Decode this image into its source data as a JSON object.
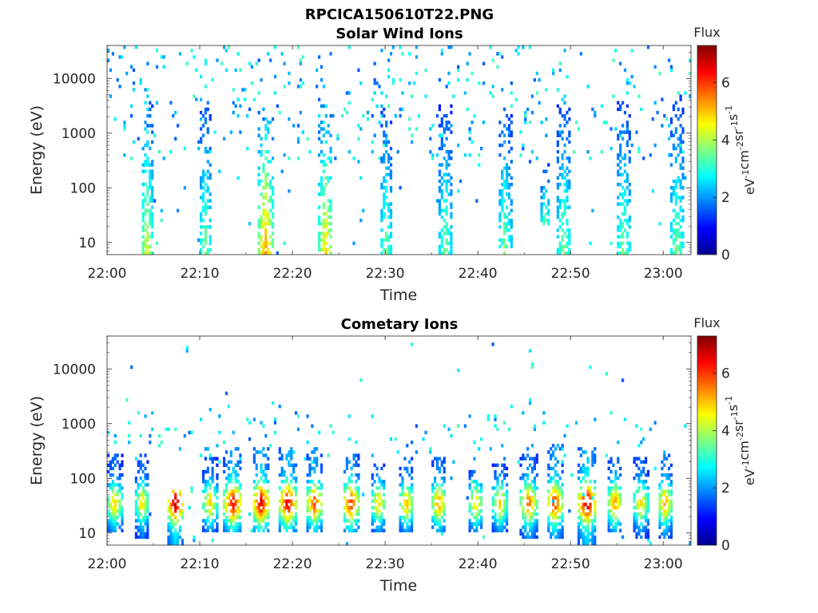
{
  "figure": {
    "suptitle": "RPCICA150610T22.PNG"
  },
  "colorbar": {
    "title": "Flux",
    "label_parts": [
      "eV",
      "-1",
      "cm",
      "-2",
      "sr",
      "-1",
      "s",
      "-1"
    ],
    "ticks": [
      "0",
      "2",
      "4",
      "6"
    ],
    "range": [
      0,
      7.3
    ],
    "colormap": "jet"
  },
  "chart_data": [
    {
      "type": "heatmap",
      "title": "Solar Wind Ions",
      "xlabel": "Time",
      "ylabel": "Energy (eV)",
      "xticks": [
        "22:00",
        "22:10",
        "22:20",
        "22:30",
        "22:40",
        "22:50",
        "23:00"
      ],
      "yticks": [
        "10",
        "100",
        "1000",
        "10000"
      ],
      "xlim_minutes_after_22_00": [
        0,
        63
      ],
      "ylim_eV": [
        6,
        40000
      ],
      "yscale": "log",
      "bursts": [
        {
          "t": 4.3,
          "width": 1.3,
          "emin": 6,
          "emax": 4000,
          "peak_flux": 4.5
        },
        {
          "t": 10.6,
          "width": 1.4,
          "emin": 6,
          "emax": 4000,
          "peak_flux": 3.8
        },
        {
          "t": 17.1,
          "width": 1.6,
          "emin": 6,
          "emax": 3000,
          "peak_flux": 5.5
        },
        {
          "t": 23.6,
          "width": 1.5,
          "emin": 6,
          "emax": 3500,
          "peak_flux": 5.0
        },
        {
          "t": 30.1,
          "width": 1.3,
          "emin": 6,
          "emax": 3000,
          "peak_flux": 3.8
        },
        {
          "t": 36.5,
          "width": 1.4,
          "emin": 6,
          "emax": 3500,
          "peak_flux": 3.8
        },
        {
          "t": 42.9,
          "width": 1.5,
          "emin": 6,
          "emax": 3500,
          "peak_flux": 3.8
        },
        {
          "t": 47.3,
          "width": 1.0,
          "emin": 20,
          "emax": 300,
          "peak_flux": 3.8
        },
        {
          "t": 49.3,
          "width": 1.6,
          "emin": 6,
          "emax": 4000,
          "peak_flux": 3.8
        },
        {
          "t": 55.7,
          "width": 1.6,
          "emin": 6,
          "emax": 4000,
          "peak_flux": 3.8
        },
        {
          "t": 61.5,
          "width": 1.6,
          "emin": 6,
          "emax": 5000,
          "peak_flux": 3.8
        }
      ]
    },
    {
      "type": "heatmap",
      "title": "Cometary Ions",
      "xlabel": "Time",
      "ylabel": "Energy (eV)",
      "xticks": [
        "22:00",
        "22:10",
        "22:20",
        "22:30",
        "22:40",
        "22:50",
        "23:00"
      ],
      "yticks": [
        "10",
        "100",
        "1000",
        "10000"
      ],
      "xlim_minutes_after_22_00": [
        0,
        63
      ],
      "ylim_eV": [
        6,
        40000
      ],
      "yscale": "log",
      "bursts": [
        {
          "t": 0.8,
          "width": 1.8,
          "emin": 10,
          "emax": 300,
          "peak_flux": 5.0
        },
        {
          "t": 3.8,
          "width": 1.4,
          "emin": 8,
          "emax": 300,
          "peak_flux": 5.0
        },
        {
          "t": 7.4,
          "width": 1.8,
          "emin": 6,
          "emax": 60,
          "peak_flux": 7.0
        },
        {
          "t": 11.1,
          "width": 1.6,
          "emin": 10,
          "emax": 250,
          "peak_flux": 5.0
        },
        {
          "t": 13.6,
          "width": 2.0,
          "emin": 10,
          "emax": 350,
          "peak_flux": 6.5
        },
        {
          "t": 16.6,
          "width": 1.8,
          "emin": 10,
          "emax": 350,
          "peak_flux": 6.8
        },
        {
          "t": 19.5,
          "width": 1.8,
          "emin": 10,
          "emax": 350,
          "peak_flux": 6.8
        },
        {
          "t": 22.4,
          "width": 1.8,
          "emin": 10,
          "emax": 350,
          "peak_flux": 6.0
        },
        {
          "t": 26.3,
          "width": 1.8,
          "emin": 10,
          "emax": 300,
          "peak_flux": 6.2
        },
        {
          "t": 29.3,
          "width": 1.6,
          "emin": 10,
          "emax": 200,
          "peak_flux": 5.0
        },
        {
          "t": 32.3,
          "width": 1.6,
          "emin": 10,
          "emax": 250,
          "peak_flux": 5.2
        },
        {
          "t": 35.8,
          "width": 1.6,
          "emin": 10,
          "emax": 250,
          "peak_flux": 5.5
        },
        {
          "t": 39.8,
          "width": 1.6,
          "emin": 10,
          "emax": 150,
          "peak_flux": 5.0
        },
        {
          "t": 42.4,
          "width": 1.6,
          "emin": 10,
          "emax": 200,
          "peak_flux": 5.0
        },
        {
          "t": 45.5,
          "width": 1.8,
          "emin": 8,
          "emax": 300,
          "peak_flux": 5.8
        },
        {
          "t": 48.3,
          "width": 1.8,
          "emin": 8,
          "emax": 350,
          "peak_flux": 6.2
        },
        {
          "t": 51.8,
          "width": 2.0,
          "emin": 6,
          "emax": 350,
          "peak_flux": 7.0
        },
        {
          "t": 54.8,
          "width": 1.6,
          "emin": 10,
          "emax": 250,
          "peak_flux": 5.5
        },
        {
          "t": 57.6,
          "width": 1.6,
          "emin": 8,
          "emax": 250,
          "peak_flux": 5.0
        },
        {
          "t": 60.2,
          "width": 1.6,
          "emin": 8,
          "emax": 300,
          "peak_flux": 5.5
        }
      ]
    }
  ]
}
